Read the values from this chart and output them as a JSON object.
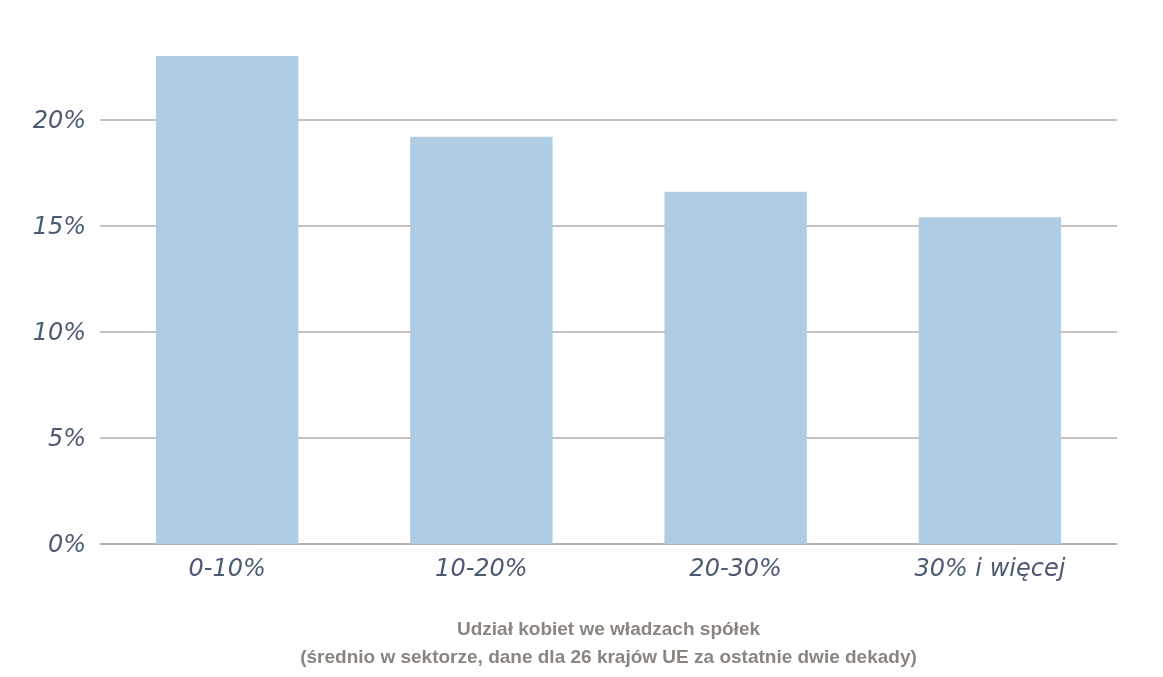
{
  "chart_data": {
    "type": "bar",
    "xlabel": "Udział kobiet we władzach spółek\n(średnio w sektorze, dane dla 26 krajów UE za ostatnie dwie dekady)",
    "categories": [
      "0-10%",
      "10-20%",
      "20-30%",
      "30% i więcej"
    ],
    "values": [
      23.0,
      19.2,
      16.6,
      15.4
    ],
    "color": "#aecde4",
    "ylim": [
      0,
      23
    ],
    "yticks": [
      {
        "value": 0,
        "label": "0%"
      },
      {
        "value": 5,
        "label": "5%"
      },
      {
        "value": 10,
        "label": "10%"
      },
      {
        "value": 15,
        "label": "15%"
      },
      {
        "value": 20,
        "label": "20%"
      }
    ],
    "grid": "y"
  }
}
